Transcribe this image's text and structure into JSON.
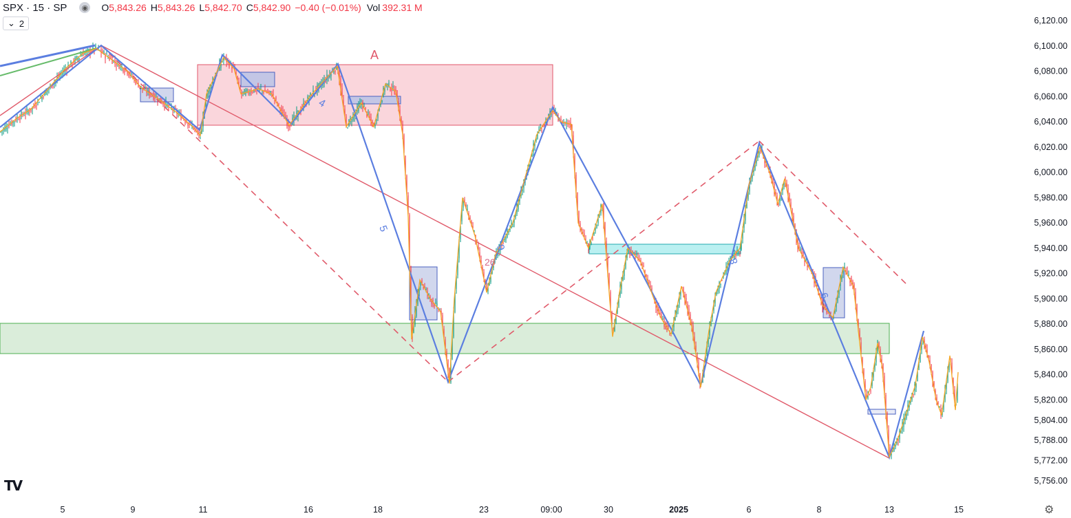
{
  "header": {
    "symbol": "SPX · 15 · SP",
    "open_label": "O",
    "open": "5,843.26",
    "high_label": "H",
    "high": "5,843.26",
    "low_label": "L",
    "low": "5,842.70",
    "close_label": "C",
    "close": "5,842.90",
    "change": "−0.40 (−0.01%)",
    "vol_label": "Vol",
    "vol": "392.31 M",
    "layout_badge": "2"
  },
  "icons": {
    "visibility": "eye-icon",
    "collapse": "chevron-down-icon",
    "logo": "tradingview-logo-icon",
    "settings": "gear-icon"
  },
  "colors": {
    "up": "#089981",
    "down": "#f23645",
    "zigzag": "#5b7ee0",
    "swing": "#f5a623",
    "trendline": "#e05a6a",
    "supply_zone": "#f8c9d0",
    "demand_zone": "#cfe8cf",
    "cyan_zone": "#b2eef0",
    "blue_box": "#c5cde9"
  },
  "chart_data": {
    "type": "candlestick",
    "y_range": [
      5748,
      6128
    ],
    "y_ticks": [
      "6,120.00",
      "6,100.00",
      "6,080.00",
      "6,060.00",
      "6,040.00",
      "6,020.00",
      "6,000.00",
      "5,980.00",
      "5,960.00",
      "5,940.00",
      "5,920.00",
      "5,900.00",
      "5,880.00",
      "5,860.00",
      "5,840.00",
      "5,820.00",
      "5,804.00",
      "5,788.00",
      "5,772.00",
      "5,756.00"
    ],
    "y_tick_values": [
      6120,
      6100,
      6080,
      6060,
      6040,
      6020,
      6000,
      5980,
      5960,
      5940,
      5920,
      5900,
      5880,
      5860,
      5840,
      5820,
      5804,
      5788,
      5772,
      5756
    ],
    "x_ticks": [
      "5",
      "9",
      "11",
      "16",
      "18",
      "23",
      "09:00",
      "30",
      "2025",
      "6",
      "8",
      "13",
      "15"
    ],
    "x_tick_bold": [
      false,
      false,
      false,
      false,
      false,
      false,
      false,
      false,
      true,
      false,
      false,
      false,
      false
    ],
    "price_path": [
      [
        0,
        6032
      ],
      [
        25,
        6043
      ],
      [
        45,
        6050
      ],
      [
        70,
        6066
      ],
      [
        95,
        6082
      ],
      [
        120,
        6094
      ],
      [
        140,
        6098
      ],
      [
        160,
        6090
      ],
      [
        185,
        6080
      ],
      [
        205,
        6067
      ],
      [
        230,
        6058
      ],
      [
        255,
        6048
      ],
      [
        280,
        6036
      ],
      [
        291,
        6029
      ],
      [
        300,
        6062
      ],
      [
        325,
        6091
      ],
      [
        340,
        6082
      ],
      [
        350,
        6062
      ],
      [
        375,
        6066
      ],
      [
        395,
        6062
      ],
      [
        420,
        6037
      ],
      [
        450,
        6060
      ],
      [
        470,
        6072
      ],
      [
        490,
        6084
      ],
      [
        503,
        6036
      ],
      [
        525,
        6055
      ],
      [
        543,
        6036
      ],
      [
        560,
        6070
      ],
      [
        575,
        6064
      ],
      [
        585,
        6030
      ],
      [
        593,
        5965
      ],
      [
        598,
        5868
      ],
      [
        610,
        5915
      ],
      [
        625,
        5900
      ],
      [
        640,
        5890
      ],
      [
        653,
        5833
      ],
      [
        660,
        5900
      ],
      [
        672,
        5980
      ],
      [
        690,
        5950
      ],
      [
        707,
        5905
      ],
      [
        720,
        5935
      ],
      [
        745,
        5960
      ],
      [
        760,
        5990
      ],
      [
        780,
        6030
      ],
      [
        803,
        6049
      ],
      [
        815,
        6040
      ],
      [
        830,
        6038
      ],
      [
        840,
        5960
      ],
      [
        855,
        5940
      ],
      [
        875,
        5975
      ],
      [
        885,
        5905
      ],
      [
        890,
        5870
      ],
      [
        900,
        5905
      ],
      [
        912,
        5940
      ],
      [
        930,
        5930
      ],
      [
        960,
        5885
      ],
      [
        975,
        5872
      ],
      [
        990,
        5910
      ],
      [
        1005,
        5878
      ],
      [
        1018,
        5830
      ],
      [
        1030,
        5875
      ],
      [
        1040,
        5905
      ],
      [
        1060,
        5930
      ],
      [
        1075,
        5940
      ],
      [
        1088,
        5990
      ],
      [
        1104,
        6020
      ],
      [
        1118,
        6000
      ],
      [
        1130,
        5975
      ],
      [
        1140,
        5995
      ],
      [
        1160,
        5940
      ],
      [
        1180,
        5920
      ],
      [
        1195,
        5895
      ],
      [
        1210,
        5885
      ],
      [
        1225,
        5925
      ],
      [
        1240,
        5910
      ],
      [
        1250,
        5860
      ],
      [
        1258,
        5820
      ],
      [
        1265,
        5830
      ],
      [
        1275,
        5865
      ],
      [
        1282,
        5845
      ],
      [
        1292,
        5775
      ],
      [
        1305,
        5790
      ],
      [
        1320,
        5815
      ],
      [
        1330,
        5832
      ],
      [
        1340,
        5870
      ],
      [
        1350,
        5850
      ],
      [
        1360,
        5820
      ],
      [
        1368,
        5808
      ],
      [
        1380,
        5855
      ],
      [
        1388,
        5812
      ],
      [
        1392,
        5842
      ]
    ],
    "annotations": {
      "zigzag_labels": [
        "A",
        "4",
        "5",
        "6",
        "8",
        "9",
        "26"
      ],
      "zones": [
        "supply-zone",
        "demand-zone",
        "cyan-zone"
      ]
    }
  }
}
